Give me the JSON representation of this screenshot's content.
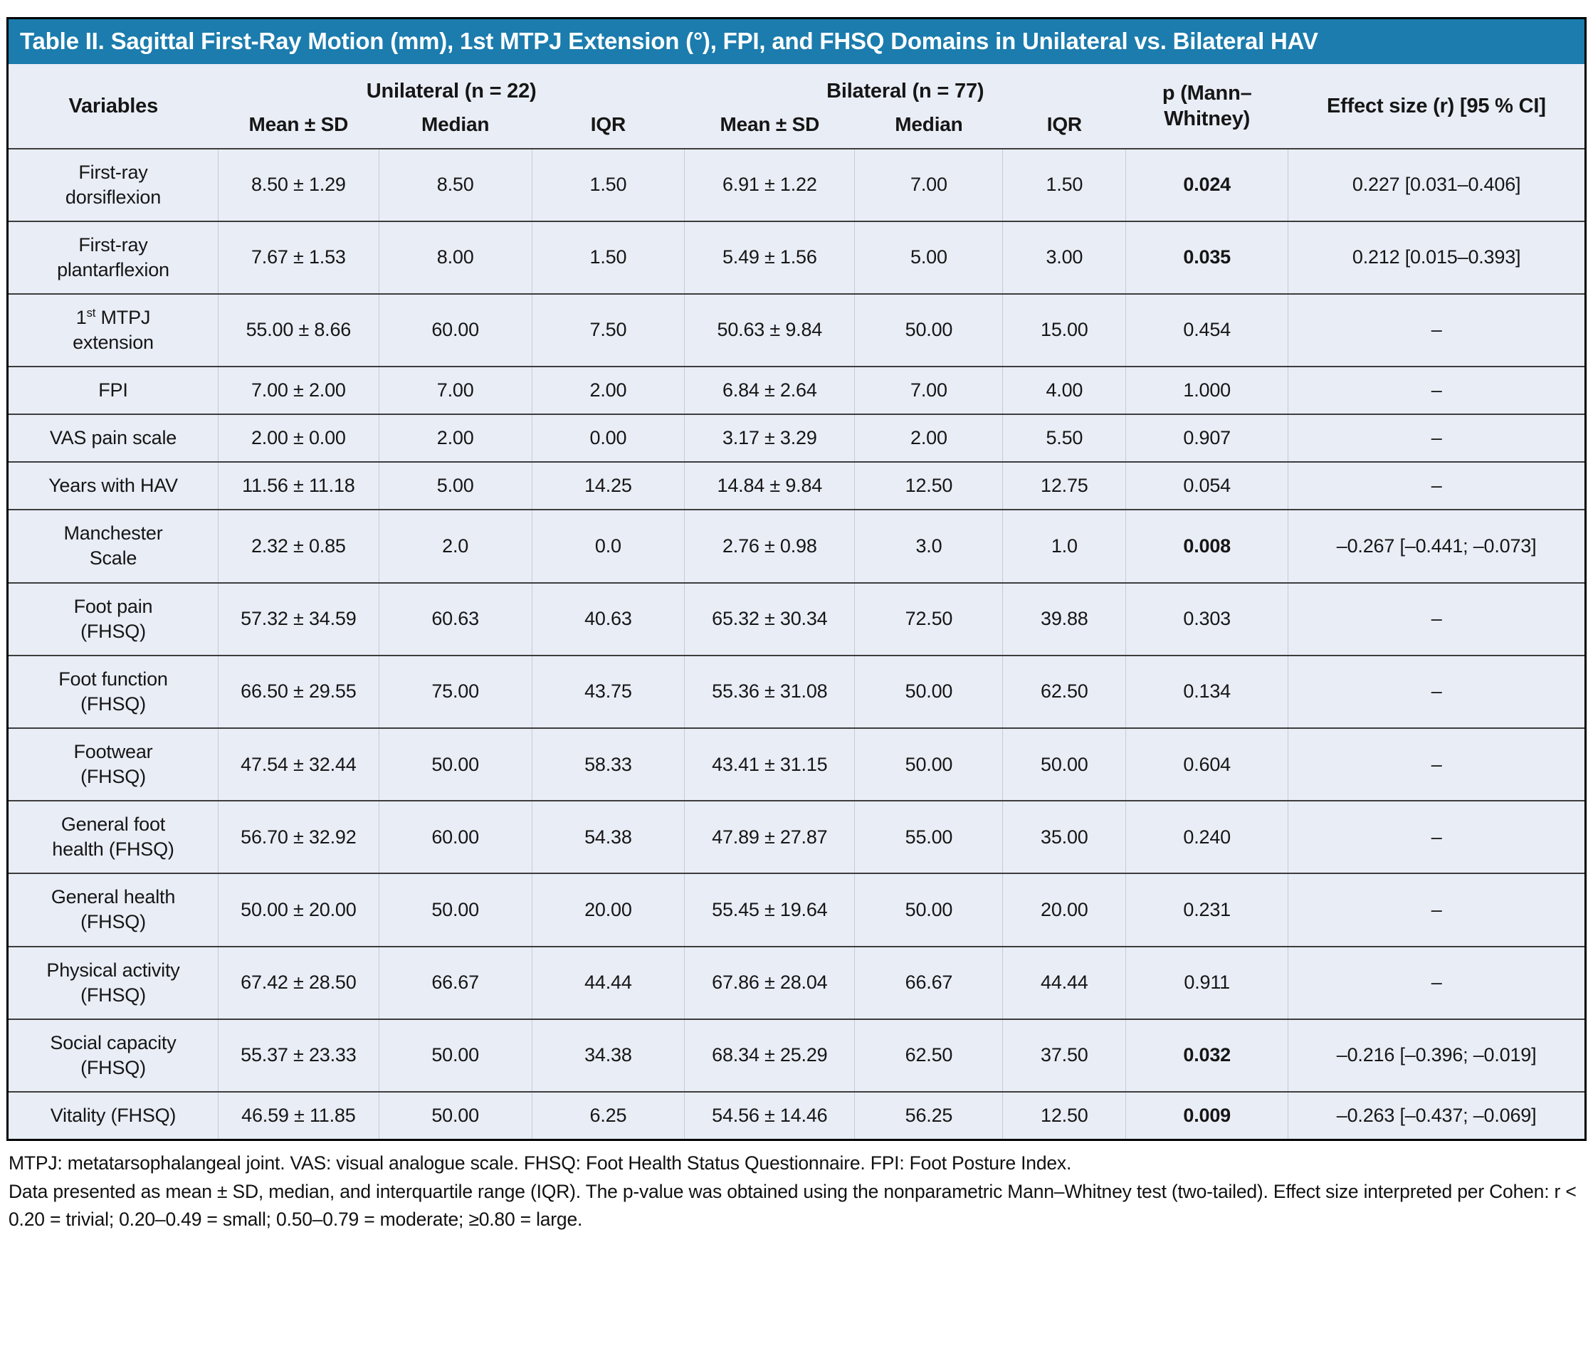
{
  "title": "Table II. Sagittal First-Ray Motion (mm), 1st MTPJ Extension (°), FPI, and FHSQ Domains in Unilateral vs. Bilateral HAV",
  "colors": {
    "title_bar_background": "#1b7cad",
    "title_text": "#ffffff",
    "table_background": "#e9edf6",
    "row_separator": "#3d3d3d",
    "outer_border": "#000000"
  },
  "header": {
    "variables": "Variables",
    "group_unilateral": "Unilateral (n = 22)",
    "group_bilateral": "Bilateral (n = 77)",
    "p_label": "p (Mann–Whitney)",
    "effect_label": "Effect size (r) [95 % CI]",
    "sub_labels": [
      "Mean ± SD",
      "Median",
      "IQR",
      "Mean ± SD",
      "Median",
      "IQR"
    ]
  },
  "rows": [
    {
      "label": "First-ray dorsiflexion",
      "uni_mean_sd": "8.50 ± 1.29",
      "uni_median": "8.50",
      "uni_iqr": "1.50",
      "bi_mean_sd": "6.91 ± 1.22",
      "bi_median": "7.00",
      "bi_iqr": "1.50",
      "p_value": "0.024",
      "p_significant": true,
      "effect_size": "0.227 [0.031–0.406]"
    },
    {
      "label": "First-ray plantarflexion",
      "uni_mean_sd": "7.67 ± 1.53",
      "uni_median": "8.00",
      "uni_iqr": "1.50",
      "bi_mean_sd": "5.49 ± 1.56",
      "bi_median": "5.00",
      "bi_iqr": "3.00",
      "p_value": "0.035",
      "p_significant": true,
      "effect_size": "0.212 [0.015–0.393]"
    },
    {
      "label_pre": "1",
      "label_sup": "st",
      "label_post": " MTPJ extension",
      "label": "1st MTPJ extension",
      "uni_mean_sd": "55.00 ± 8.66",
      "uni_median": "60.00",
      "uni_iqr": "7.50",
      "bi_mean_sd": "50.63 ± 9.84",
      "bi_median": "50.00",
      "bi_iqr": "15.00",
      "p_value": "0.454",
      "p_significant": false,
      "effect_size": "–"
    },
    {
      "label": "FPI",
      "uni_mean_sd": "7.00 ± 2.00",
      "uni_median": "7.00",
      "uni_iqr": "2.00",
      "bi_mean_sd": "6.84 ± 2.64",
      "bi_median": "7.00",
      "bi_iqr": "4.00",
      "p_value": "1.000",
      "p_significant": false,
      "effect_size": "–"
    },
    {
      "label": "VAS pain scale",
      "uni_mean_sd": "2.00 ± 0.00",
      "uni_median": "2.00",
      "uni_iqr": "0.00",
      "bi_mean_sd": "3.17 ± 3.29",
      "bi_median": "2.00",
      "bi_iqr": "5.50",
      "p_value": "0.907",
      "p_significant": false,
      "effect_size": "–"
    },
    {
      "label": "Years with HAV",
      "uni_mean_sd": "11.56 ± 11.18",
      "uni_median": "5.00",
      "uni_iqr": "14.25",
      "bi_mean_sd": "14.84 ± 9.84",
      "bi_median": "12.50",
      "bi_iqr": "12.75",
      "p_value": "0.054",
      "p_significant": false,
      "effect_size": "–"
    },
    {
      "label": "Manchester Scale",
      "uni_mean_sd": "2.32 ± 0.85",
      "uni_median": "2.0",
      "uni_iqr": "0.0",
      "bi_mean_sd": "2.76 ± 0.98",
      "bi_median": "3.0",
      "bi_iqr": "1.0",
      "p_value": "0.008",
      "p_significant": true,
      "effect_size": "–0.267 [–0.441; –0.073]"
    },
    {
      "label": "Foot pain (FHSQ)",
      "uni_mean_sd": "57.32 ± 34.59",
      "uni_median": "60.63",
      "uni_iqr": "40.63",
      "bi_mean_sd": "65.32 ± 30.34",
      "bi_median": "72.50",
      "bi_iqr": "39.88",
      "p_value": "0.303",
      "p_significant": false,
      "effect_size": "–"
    },
    {
      "label": "Foot function (FHSQ)",
      "uni_mean_sd": "66.50 ± 29.55",
      "uni_median": "75.00",
      "uni_iqr": "43.75",
      "bi_mean_sd": "55.36 ± 31.08",
      "bi_median": "50.00",
      "bi_iqr": "62.50",
      "p_value": "0.134",
      "p_significant": false,
      "effect_size": "–"
    },
    {
      "label": "Footwear (FHSQ)",
      "uni_mean_sd": "47.54 ± 32.44",
      "uni_median": "50.00",
      "uni_iqr": "58.33",
      "bi_mean_sd": "43.41 ± 31.15",
      "bi_median": "50.00",
      "bi_iqr": "50.00",
      "p_value": "0.604",
      "p_significant": false,
      "effect_size": "–"
    },
    {
      "label": "General foot health (FHSQ)",
      "uni_mean_sd": "56.70 ± 32.92",
      "uni_median": "60.00",
      "uni_iqr": "54.38",
      "bi_mean_sd": "47.89 ± 27.87",
      "bi_median": "55.00",
      "bi_iqr": "35.00",
      "p_value": "0.240",
      "p_significant": false,
      "effect_size": "–"
    },
    {
      "label": "General health (FHSQ)",
      "uni_mean_sd": "50.00 ± 20.00",
      "uni_median": "50.00",
      "uni_iqr": "20.00",
      "bi_mean_sd": "55.45 ± 19.64",
      "bi_median": "50.00",
      "bi_iqr": "20.00",
      "p_value": "0.231",
      "p_significant": false,
      "effect_size": "–"
    },
    {
      "label": "Physical activity (FHSQ)",
      "uni_mean_sd": "67.42 ± 28.50",
      "uni_median": "66.67",
      "uni_iqr": "44.44",
      "bi_mean_sd": "67.86 ± 28.04",
      "bi_median": "66.67",
      "bi_iqr": "44.44",
      "p_value": "0.911",
      "p_significant": false,
      "effect_size": "–"
    },
    {
      "label": "Social capacity (FHSQ)",
      "uni_mean_sd": "55.37 ± 23.33",
      "uni_median": "50.00",
      "uni_iqr": "34.38",
      "bi_mean_sd": "68.34 ± 25.29",
      "bi_median": "62.50",
      "bi_iqr": "37.50",
      "p_value": "0.032",
      "p_significant": true,
      "effect_size": "–0.216 [–0.396; –0.019]"
    },
    {
      "label": "Vitality (FHSQ)",
      "uni_mean_sd": "46.59 ± 11.85",
      "uni_median": "50.00",
      "uni_iqr": "6.25",
      "bi_mean_sd": "54.56 ± 14.46",
      "bi_median": "56.25",
      "bi_iqr": "12.50",
      "p_value": "0.009",
      "p_significant": true,
      "effect_size": "–0.263 [–0.437; –0.069]"
    }
  ],
  "footnotes": {
    "abbreviations": "MTPJ: metatarsophalangeal joint. VAS: visual analogue scale. FHSQ: Foot Health Status Questionnaire. FPI: Foot Posture Index.",
    "methods": "Data presented as mean ± SD, median, and interquartile range (IQR). The p-value was obtained using the nonparametric Mann–Whitney test (two-tailed). Effect size interpreted per Cohen: r < 0.20 = trivial; 0.20–0.49 = small; 0.50–0.79 = moderate; ≥0.80 = large."
  }
}
